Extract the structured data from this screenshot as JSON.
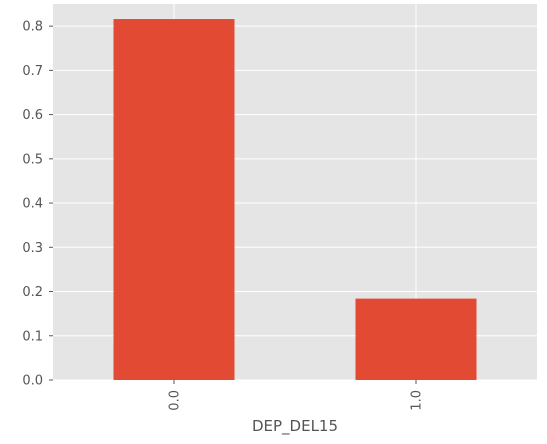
{
  "chart_data": {
    "type": "bar",
    "categories": [
      "0.0",
      "1.0"
    ],
    "values": [
      0.816,
      0.184
    ],
    "xlabel": "DEP_DEL15",
    "ylabel": "",
    "ylim": [
      0,
      0.85
    ],
    "yticks": [
      0.0,
      0.1,
      0.2,
      0.3,
      0.4,
      0.5,
      0.6,
      0.7,
      0.8
    ],
    "ytick_labels": [
      "0.0",
      "0.1",
      "0.2",
      "0.3",
      "0.4",
      "0.5",
      "0.6",
      "0.7",
      "0.8"
    ],
    "grid": true,
    "colors": {
      "bar": "#e24a33",
      "plot_background": "#e5e5e5",
      "grid": "#ffffff",
      "text": "#555555"
    }
  }
}
